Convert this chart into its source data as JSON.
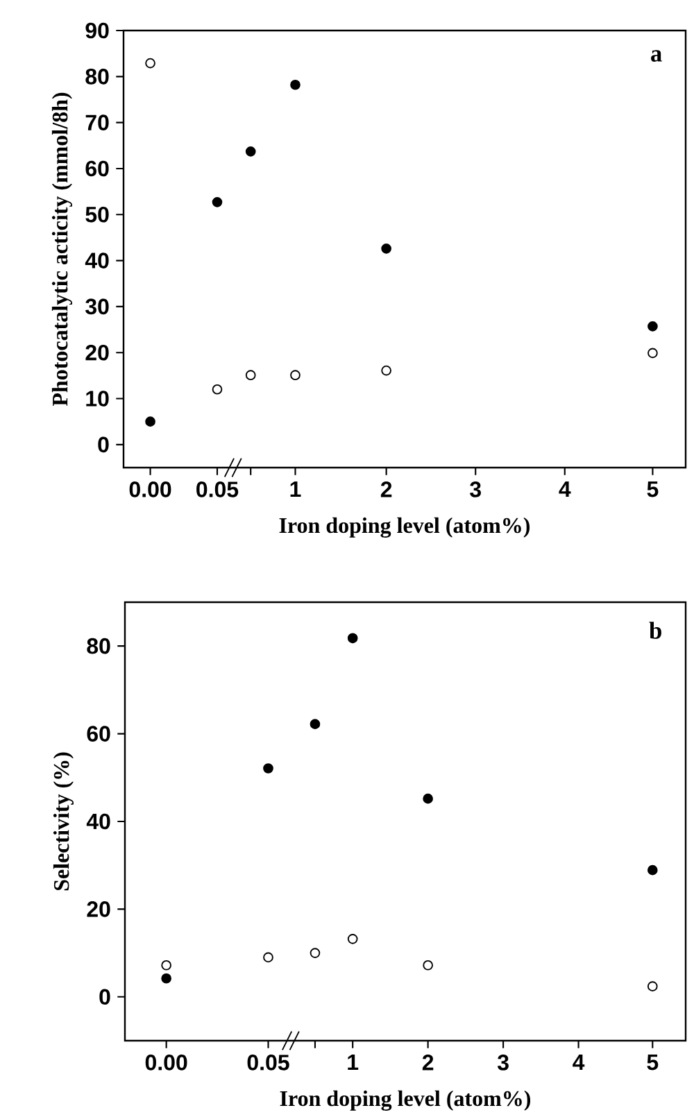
{
  "chart_data": [
    {
      "type": "scatter",
      "xlabel": "Iron doping level (atom%)",
      "ylabel": "Photocatalytic acticity (mmol/8h)",
      "annotations": [
        "a"
      ],
      "marker": "circle",
      "categories": [
        "0.00",
        "0.05",
        null,
        "1",
        "2",
        "3",
        "4",
        "5"
      ],
      "ylim": [
        -5,
        90
      ],
      "yticks": [
        0,
        10,
        20,
        30,
        40,
        50,
        60,
        70,
        80,
        90
      ],
      "series": [
        {
          "color": "#000000",
          "values": [
            5.0,
            52.7,
            63.7,
            78.2,
            42.6,
            null,
            null,
            25.7
          ]
        },
        {
          "color": "#ffffff",
          "values": [
            82.9,
            12.0,
            15.1,
            15.1,
            16.1,
            null,
            null,
            19.9
          ]
        }
      ]
    },
    {
      "type": "scatter",
      "xlabel": "Iron doping level (atom%)",
      "ylabel": "Selectivity (%)",
      "annotations": [
        "b"
      ],
      "marker": "circle",
      "categories": [
        "0.00",
        "0.05",
        null,
        "1",
        "2",
        "3",
        "4",
        "5"
      ],
      "ylim": [
        -10,
        90
      ],
      "yticks": [
        0,
        20,
        40,
        60,
        80
      ],
      "series": [
        {
          "color": "#000000",
          "values": [
            4.2,
            52.1,
            62.2,
            81.8,
            45.2,
            null,
            null,
            28.9
          ]
        },
        {
          "color": "#ffffff",
          "values": [
            7.2,
            9.0,
            10.0,
            13.2,
            7.2,
            null,
            null,
            2.4
          ]
        }
      ]
    }
  ]
}
